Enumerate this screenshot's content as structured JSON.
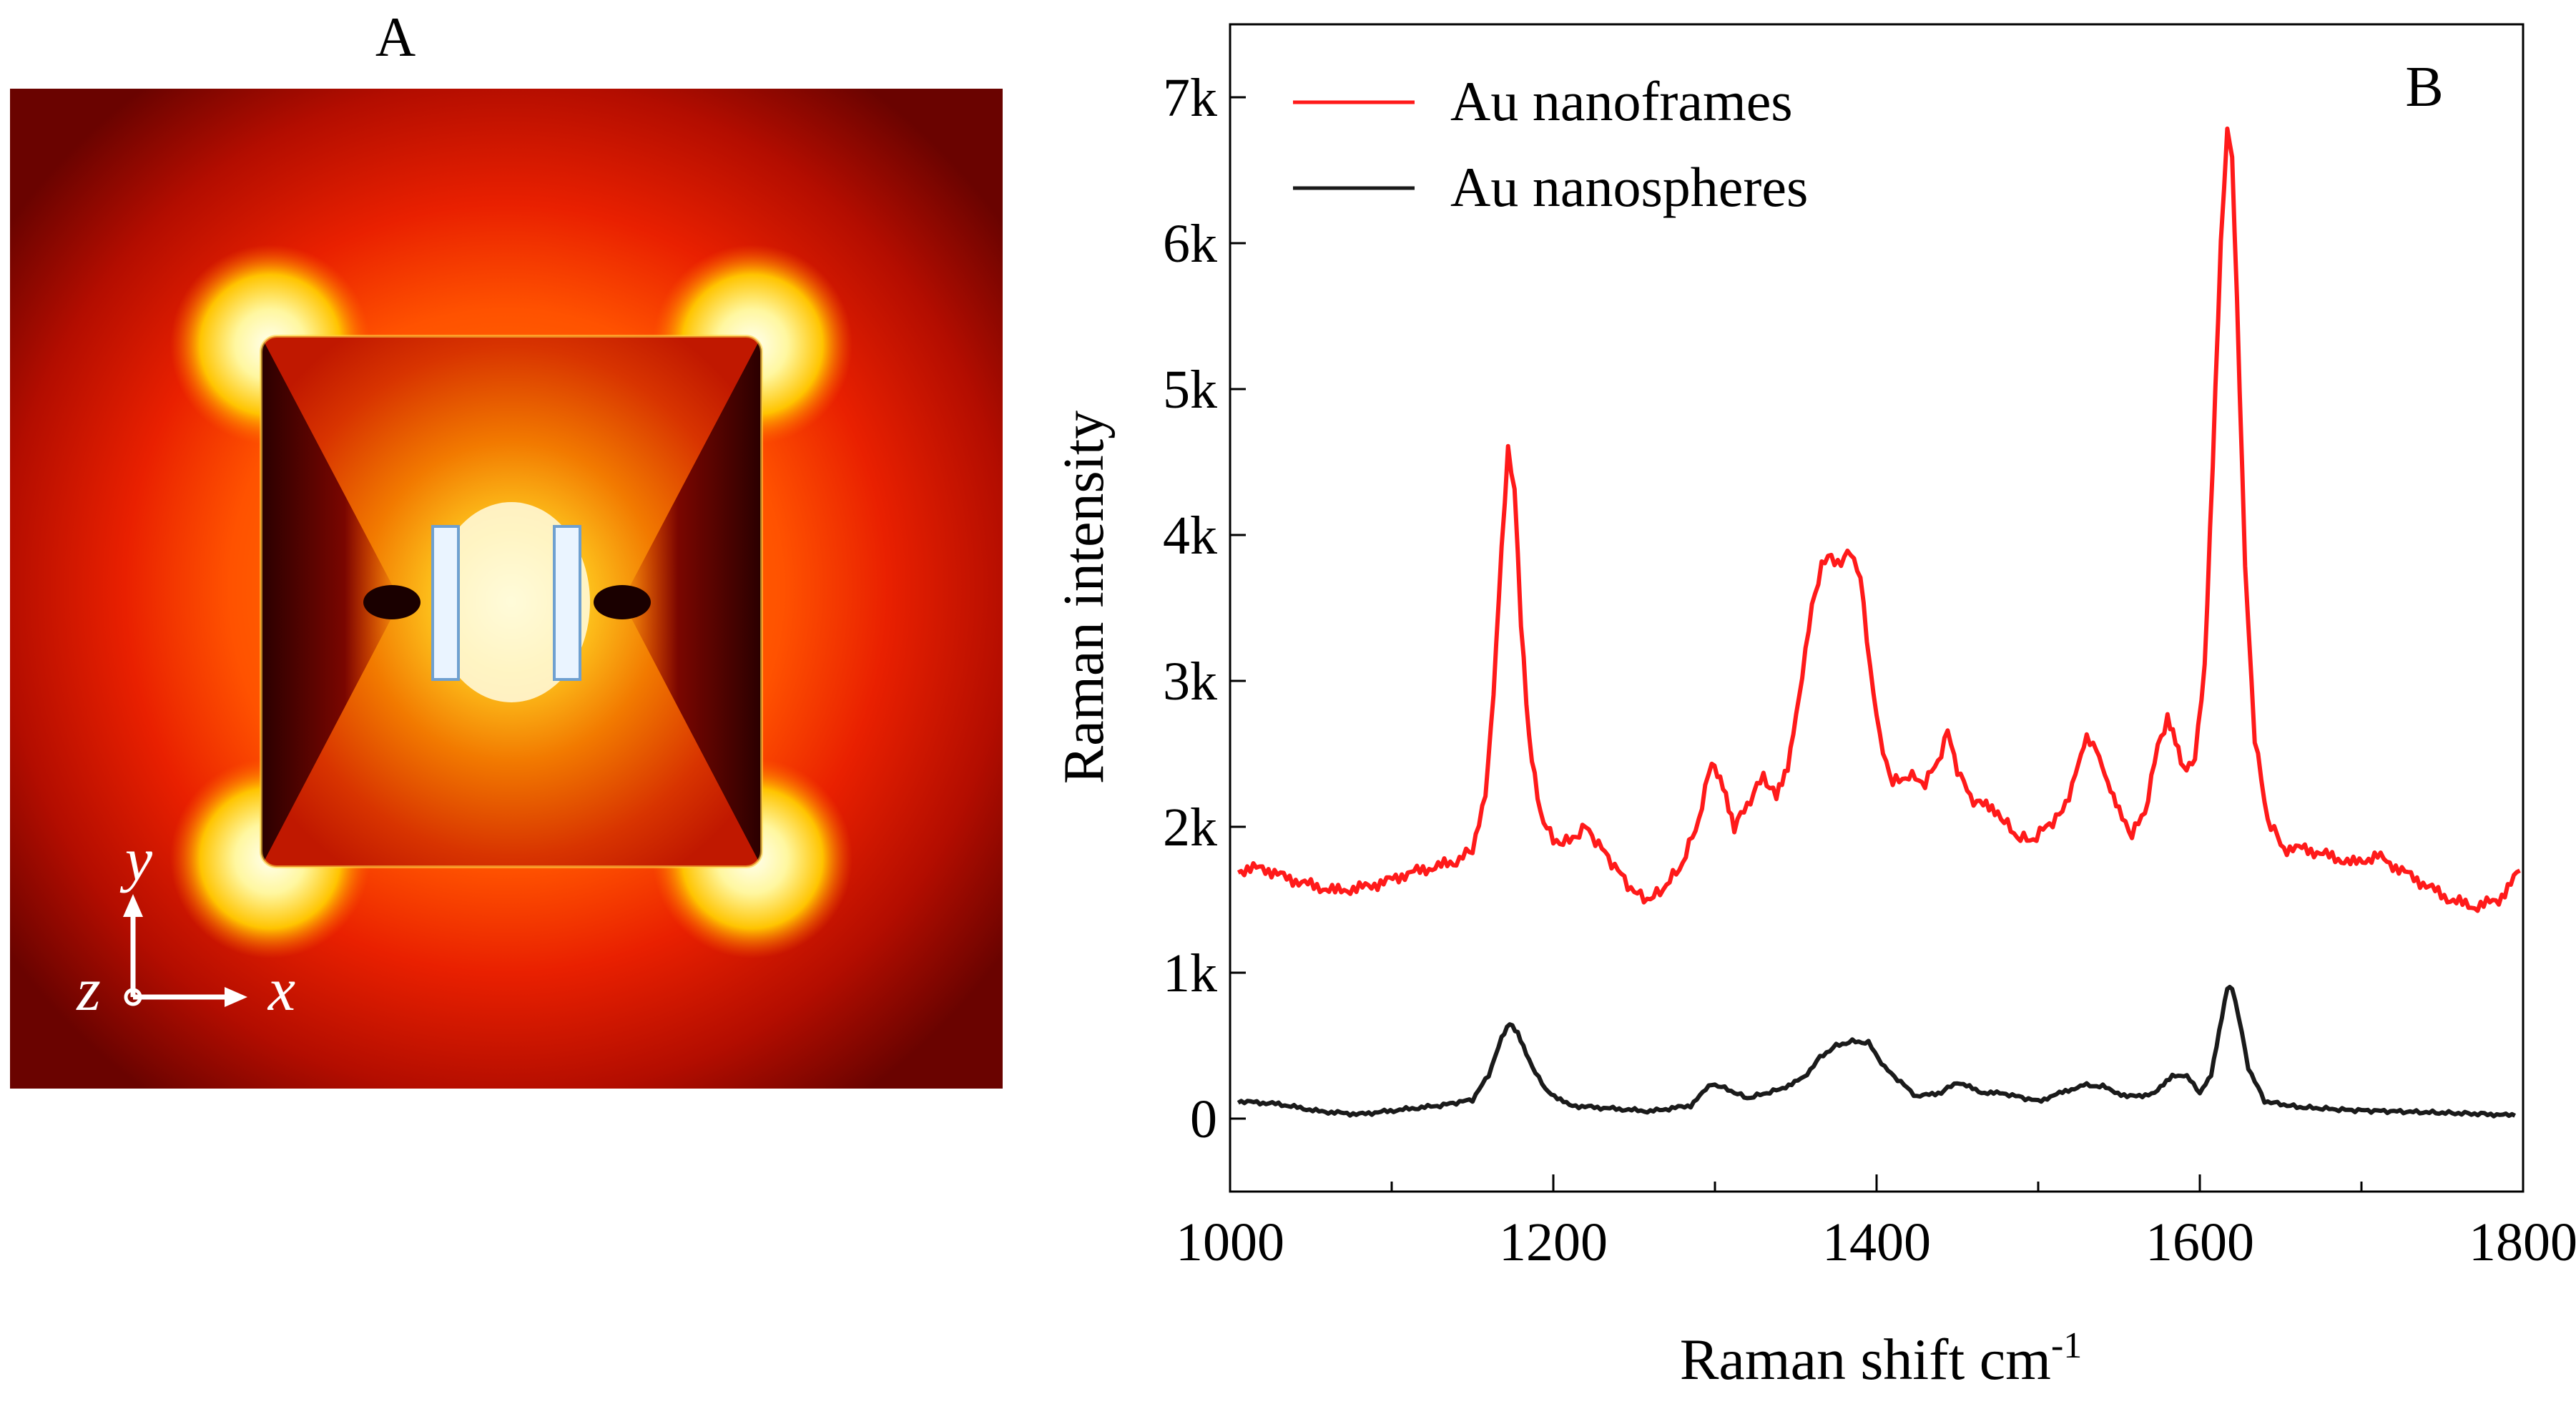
{
  "panel_a": {
    "label": "A",
    "axis_y": "y",
    "axis_z": "z",
    "axis_x": "x"
  },
  "panel_b": {
    "label": "B"
  },
  "colors": {
    "nanoframes": "#ff1a1a",
    "nanospheres": "#1a1a1a",
    "axis": "#000000"
  },
  "chart_data": {
    "type": "line",
    "title": "",
    "xlabel": "Raman shift cm",
    "xlabel_superscript": "-1",
    "ylabel": "Raman intensity",
    "xlim": [
      1000,
      1800
    ],
    "ylim": [
      -500,
      7500
    ],
    "x_ticks": [
      1000,
      1200,
      1400,
      1600,
      1800
    ],
    "x_tick_labels": [
      "1000",
      "1200",
      "1400",
      "1600",
      "1800"
    ],
    "x_minor_ticks": [
      1100,
      1300,
      1500,
      1700
    ],
    "y_ticks": [
      0,
      1000,
      2000,
      3000,
      4000,
      5000,
      6000,
      7000
    ],
    "y_tick_labels": [
      "0",
      "1k",
      "2k",
      "3k",
      "4k",
      "5k",
      "6k",
      "7k"
    ],
    "legend": "top-left",
    "series": [
      {
        "name": "Au nanoframes",
        "color": "#ff1a1a",
        "x": [
          1005,
          1020,
          1035,
          1050,
          1065,
          1080,
          1095,
          1110,
          1125,
          1140,
          1150,
          1158,
          1163,
          1168,
          1172,
          1176,
          1180,
          1185,
          1192,
          1200,
          1210,
          1220,
          1230,
          1240,
          1250,
          1260,
          1270,
          1280,
          1290,
          1298,
          1305,
          1312,
          1320,
          1330,
          1338,
          1345,
          1352,
          1360,
          1366,
          1372,
          1378,
          1384,
          1390,
          1396,
          1402,
          1410,
          1420,
          1430,
          1438,
          1444,
          1450,
          1458,
          1466,
          1475,
          1485,
          1495,
          1505,
          1515,
          1523,
          1530,
          1536,
          1543,
          1550,
          1558,
          1566,
          1574,
          1580,
          1585,
          1590,
          1597,
          1603,
          1608,
          1613,
          1617,
          1620,
          1623,
          1628,
          1634,
          1642,
          1652,
          1665,
          1680,
          1695,
          1710,
          1725,
          1740,
          1755,
          1770,
          1785,
          1798
        ],
        "values": [
          1700,
          1720,
          1650,
          1600,
          1560,
          1580,
          1620,
          1680,
          1720,
          1760,
          1850,
          2200,
          2900,
          3900,
          4600,
          4300,
          3400,
          2600,
          2100,
          1900,
          1900,
          2000,
          1850,
          1700,
          1550,
          1500,
          1600,
          1750,
          2050,
          2450,
          2300,
          2000,
          2150,
          2350,
          2200,
          2400,
          2900,
          3500,
          3800,
          3850,
          3800,
          3900,
          3700,
          3100,
          2600,
          2300,
          2350,
          2300,
          2450,
          2650,
          2400,
          2200,
          2150,
          2100,
          1950,
          1900,
          2000,
          2100,
          2350,
          2600,
          2550,
          2300,
          2100,
          1950,
          2100,
          2550,
          2750,
          2600,
          2400,
          2450,
          3100,
          4500,
          6000,
          6800,
          6600,
          5600,
          3800,
          2600,
          2050,
          1850,
          1850,
          1800,
          1750,
          1800,
          1700,
          1600,
          1500,
          1450,
          1500,
          1700
        ]
      },
      {
        "name": "Au nanospheres",
        "color": "#1a1a1a",
        "x": [
          1005,
          1030,
          1055,
          1080,
          1105,
          1130,
          1150,
          1160,
          1168,
          1173,
          1178,
          1185,
          1195,
          1210,
          1235,
          1260,
          1285,
          1298,
          1308,
          1320,
          1340,
          1355,
          1365,
          1375,
          1385,
          1395,
          1405,
          1425,
          1440,
          1450,
          1465,
          1480,
          1500,
          1515,
          1528,
          1540,
          1555,
          1572,
          1583,
          1592,
          1600,
          1607,
          1612,
          1617,
          1620,
          1624,
          1630,
          1640,
          1660,
          1690,
          1720,
          1750,
          1780,
          1795
        ],
        "values": [
          120,
          100,
          50,
          30,
          60,
          90,
          130,
          300,
          550,
          650,
          580,
          400,
          200,
          90,
          70,
          50,
          90,
          240,
          200,
          140,
          200,
          280,
          420,
          500,
          530,
          520,
          350,
          150,
          180,
          250,
          180,
          170,
          120,
          180,
          230,
          220,
          150,
          170,
          300,
          290,
          180,
          300,
          600,
          900,
          900,
          700,
          350,
          120,
          80,
          60,
          50,
          40,
          30,
          20
        ]
      }
    ]
  }
}
